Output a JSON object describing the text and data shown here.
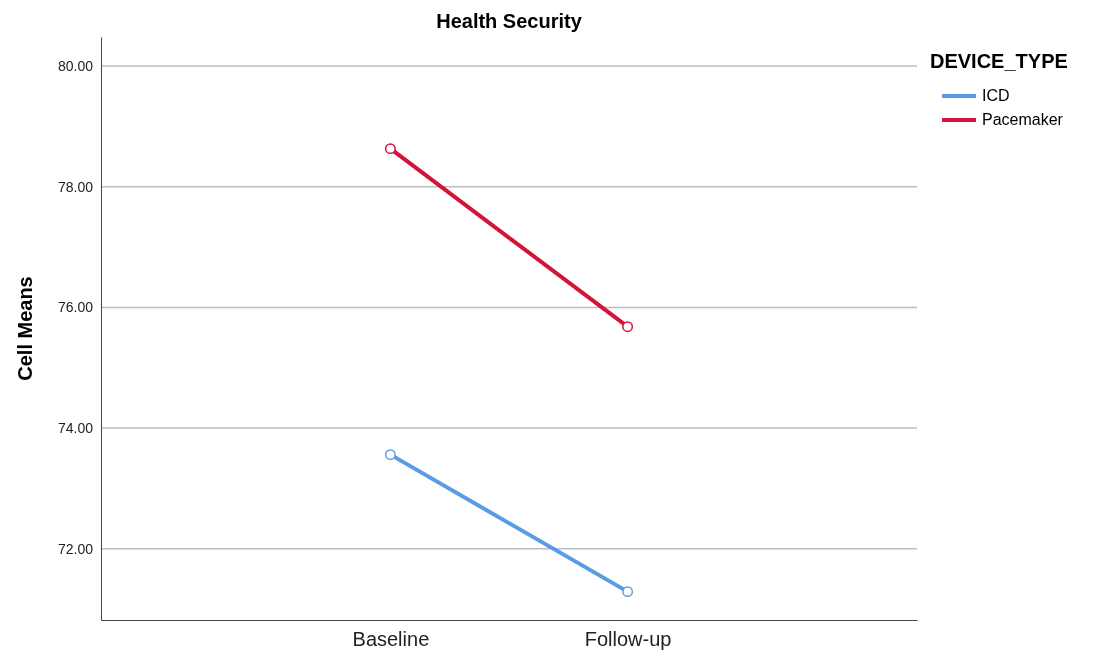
{
  "chart_data": {
    "type": "line",
    "title": "Health Security",
    "ylabel": "Cell Means",
    "legend_title": "DEVICE_TYPE",
    "categories": [
      "Baseline",
      "Follow-up"
    ],
    "series": [
      {
        "name": "ICD",
        "color": "#5a9be8",
        "values": [
          73.56,
          71.29
        ]
      },
      {
        "name": "Pacemaker",
        "color": "#d2143c",
        "values": [
          78.63,
          75.68
        ]
      }
    ],
    "ylim": [
      70.82,
      80.48
    ],
    "yticks": [
      {
        "value": 72,
        "label": "72.00"
      },
      {
        "value": 74,
        "label": "74.00"
      },
      {
        "value": 76,
        "label": "76.00"
      },
      {
        "value": 78,
        "label": "78.00"
      },
      {
        "value": 80,
        "label": "80.00"
      }
    ],
    "grid": "y",
    "legend": "top right",
    "marker": "circle",
    "line_style": "solid"
  }
}
